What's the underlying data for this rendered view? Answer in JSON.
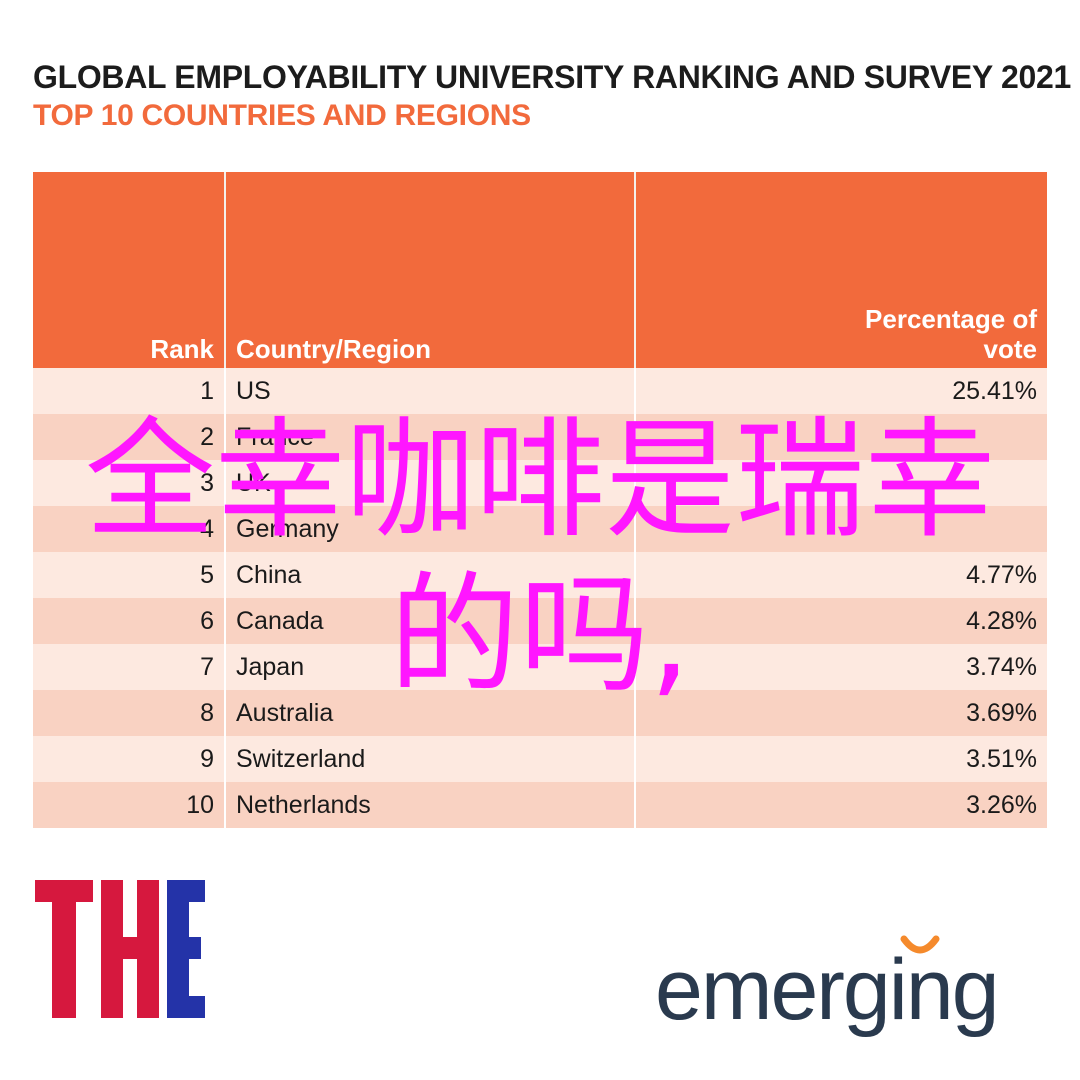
{
  "colors": {
    "header_bg": "#f26a3c",
    "subtitle": "#f26a3c",
    "row_light": "#fde9e0",
    "row_dark": "#f9d2c2",
    "overlay_text": "#ff16ff",
    "the_logo_red": "#d6183e",
    "the_logo_blue": "#2433a8",
    "emerging_text": "#2a3a4e",
    "emerging_accent": "#f58a2c"
  },
  "header": {
    "title": "GLOBAL EMPLOYABILITY UNIVERSITY RANKING AND SURVEY 2021",
    "subtitle": "TOP 10 COUNTRIES AND REGIONS"
  },
  "chart_data": {
    "type": "table",
    "columns": [
      "Rank",
      "Country/Region",
      "Percentage of vote"
    ],
    "rows": [
      [
        "1",
        "US",
        "25.41%"
      ],
      [
        "2",
        "France",
        ""
      ],
      [
        "3",
        "UK",
        ""
      ],
      [
        "4",
        "Germany",
        ""
      ],
      [
        "5",
        "China",
        "4.77%"
      ],
      [
        "6",
        "Canada",
        "4.28%"
      ],
      [
        "7",
        "Japan",
        "3.74%"
      ],
      [
        "8",
        "Australia",
        "3.69%"
      ],
      [
        "9",
        "Switzerland",
        "3.51%"
      ],
      [
        "10",
        "Netherlands",
        "3.26%"
      ]
    ]
  },
  "logos": {
    "the": "THE",
    "emerging": "emerging"
  },
  "overlay": {
    "line1": "全幸咖啡是瑞幸",
    "line2": "的吗,"
  }
}
